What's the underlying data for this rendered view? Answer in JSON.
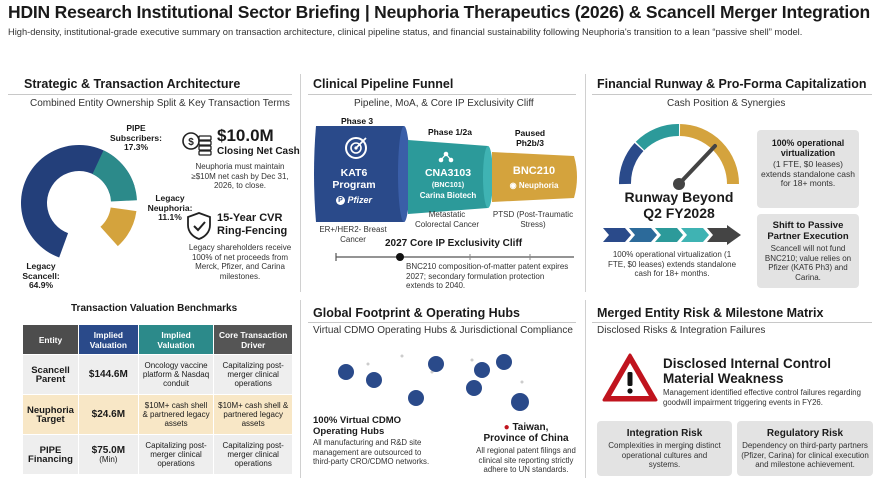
{
  "header": {
    "title": "HDIN Research Institutional Sector Briefing | Neuphoria Therapeutics (2026) & Scancell Merger Integration",
    "subtitle": "High-density, institutional-grade executive summary on transaction architecture, clinical pipeline status, and financial sustainability following Neuphoria's transition to a lean “passive shell” model."
  },
  "strategic": {
    "heading": "Strategic & Transaction Architecture",
    "subheading": "Combined Entity Ownership Split & Key Transaction Terms",
    "donut": {
      "segments": [
        {
          "label": "Legacy Scancell:",
          "value_text": "64.9%",
          "value": 64.9,
          "color": "#233f7a"
        },
        {
          "label": "Legacy Neuphoria:",
          "value_text": "11.1%",
          "value": 11.1,
          "color": "#d4a33d"
        },
        {
          "label": "PIPE Subscribers:",
          "value_text": "17.3%",
          "value": 17.3,
          "color": "#2c8a8a"
        }
      ]
    },
    "cash": {
      "amount": "$10.0M",
      "label": "Closing Net Cash",
      "desc": "Neuphoria must maintain ≥$10M net cash by Dec 31, 2026, to close."
    },
    "cvr": {
      "title_line1": "15-Year CVR",
      "title_line2": "Ring-Fencing",
      "desc": "Legacy shareholders receive 100% of net proceeds from Merck, Pfizer, and Carina milestones."
    },
    "bench_title": "Transaction Valuation Benchmarks",
    "table": {
      "headers": [
        "Entity",
        "Implied Valuation",
        "Implied Valuation",
        "Core Transaction Driver"
      ],
      "rows": [
        {
          "entity": "Scancell Parent",
          "value": "$144.6M",
          "value_suffix": "",
          "col3": "Oncology vaccine platform & Nasdaq conduit",
          "col4": "Capitalizing post-merger clinical operations"
        },
        {
          "entity": "Neuphoria Target",
          "value": "$24.6M",
          "value_suffix": "",
          "col3": "$10M+ cash shell & partnered legacy assets",
          "col4": "$10M+ cash shell & partnered legacy assets"
        },
        {
          "entity": "PIPE Financing",
          "value": "$75.0M",
          "value_suffix": "(Min)",
          "col3": "Capitalizing post-merger clinical operations",
          "col4": "Capitalizing post-merger clinical operations"
        }
      ]
    }
  },
  "pipeline": {
    "heading": "Clinical Pipeline Funnel",
    "subheading": "Pipeline, MoA, & Core IP Exclusivity Cliff",
    "stages": [
      {
        "phase": "Phase 3",
        "name": "KAT6 Program",
        "partner": "Pfizer",
        "indication": "ER+/HER2- Breast Cancer",
        "color": "#2a4a8a"
      },
      {
        "phase": "Phase 1/2a",
        "name": "CNA3103",
        "code": "(BNC101)",
        "partner": "Carina Biotech",
        "indication": "Metastatic Colorectal Cancer",
        "color": "#2c9a9a"
      },
      {
        "phase": "Paused Ph2b/3",
        "name": "BNC210",
        "partner": "Neuphoria",
        "indication": "PTSD (Post-Traumatic Stress)",
        "color": "#d4a33d"
      }
    ],
    "cliff_title": "2027 Core IP Exclusivity Cliff",
    "cliff_desc": "BNC210 composition-of-matter patent expires 2027; secondary formulation protection extends to 2040."
  },
  "runway": {
    "heading": "Financial Runway & Pro-Forma Capitalization",
    "subheading": "Cash Position & Synergies",
    "title_line1": "Runway Beyond",
    "title_line2": "Q2 FY2028",
    "desc": "100% operational virtualization (1 FTE, $0 leases) extends standalone cash for 18+ months.",
    "box1_title": "100% operational virtualization",
    "box1_body": "(1 FTE, $0 leases) extends standalone cash for 18+ monts.",
    "box2_title": "Shift to Passive Partner Execution",
    "box2_body": "Scancell will not fund BNC210; value relies on Pfizer (KAT6 Ph3) and Carina."
  },
  "global": {
    "heading": "Global Footprint & Operating Hubs",
    "subheading": "Virtual CDMO Operating Hubs & Jurisdictional Compliance",
    "left_title_1": "100% Virtual CDMO",
    "left_title_2": "Operating Hubs",
    "left_desc": "All manufacturing and R&D site management are outsourced to third-party CRO/CDMO networks.",
    "taiwan_title_1": "Taiwan,",
    "taiwan_title_2": "Province of China",
    "taiwan_desc": "All regional patent filings and clinical site reporting strictly adhere to UN standards."
  },
  "risk": {
    "heading": "Merged Entity Risk & Milestone Matrix",
    "subheading": "Disclosed Risks & Integration Failures",
    "main_title_1": "Disclosed Internal Control",
    "main_title_2": "Material Weakness",
    "main_desc": "Management identified effective control failures regarding goodwill impairment triggering events in FY26.",
    "integration_title": "Integration Risk",
    "integration_desc": "Complexities in merging distinct operational cultures and systems.",
    "regulatory_title": "Regulatory Risk",
    "regulatory_desc": "Dependency on third-party partners (Pfizer, Carina) for clinical execution and milestone achievement."
  }
}
